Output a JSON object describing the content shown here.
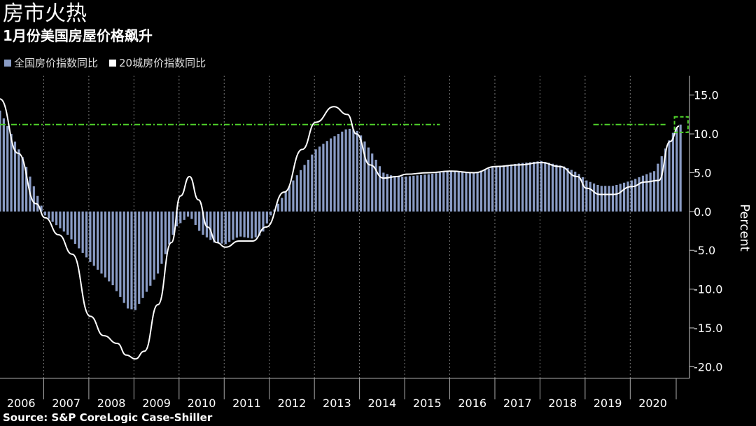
{
  "title": "房市火热",
  "subtitle": "1月份美国房屋价格飙升",
  "source": "Source: S&P CoreLogic Case-Shiller",
  "colors": {
    "background": "#000000",
    "bars": "#8a9cc5",
    "line": "#ffffff",
    "threshold": "#4fd12a",
    "grid": "#7a7a7a"
  },
  "chart_data": {
    "type": "bar",
    "ylabel": "Percent",
    "ylim": [
      -21.5,
      17.5
    ],
    "yticks": [
      15.0,
      10.0,
      5.0,
      0.0,
      -5.0,
      -10.0,
      -15.0,
      -20.0
    ],
    "ytick_labels": [
      "15.0",
      "10.0",
      "5.0",
      "0.0",
      "-5.0",
      "-10.0",
      "-15.0",
      "-20.0"
    ],
    "xlim": [
      2006.0,
      2021.05
    ],
    "x_labels": [
      "2006",
      "2007",
      "2008",
      "2009",
      "2010",
      "2011",
      "2012",
      "2013",
      "2014",
      "2015",
      "2016",
      "2017",
      "2018",
      "2019",
      "2020"
    ],
    "grid": "vertical dotted at year starts",
    "legend_position": "top-left",
    "series": [
      {
        "name": "全国房价指数同比",
        "kind": "bar",
        "points": [
          [
            2006.0,
            13.0
          ],
          [
            2006.5,
            7.0
          ],
          [
            2007.0,
            -0.5
          ],
          [
            2007.5,
            -3.0
          ],
          [
            2008.0,
            -6.5
          ],
          [
            2008.5,
            -9.5
          ],
          [
            2008.83,
            -12.5
          ],
          [
            2009.0,
            -12.7
          ],
          [
            2009.5,
            -8.0
          ],
          [
            2009.9,
            -2.0
          ],
          [
            2010.2,
            -0.5
          ],
          [
            2010.45,
            -2.8
          ],
          [
            2010.75,
            -4.0
          ],
          [
            2011.0,
            -4.2
          ],
          [
            2011.3,
            -3.2
          ],
          [
            2011.6,
            -3.5
          ],
          [
            2011.8,
            -3.0
          ],
          [
            2012.0,
            -0.5
          ],
          [
            2012.5,
            4.0
          ],
          [
            2013.0,
            8.0
          ],
          [
            2013.3,
            9.3
          ],
          [
            2013.7,
            10.7
          ],
          [
            2013.9,
            10.5
          ],
          [
            2014.0,
            9.8
          ],
          [
            2014.3,
            7.0
          ],
          [
            2014.5,
            5.0
          ],
          [
            2014.75,
            4.5
          ],
          [
            2015.0,
            4.5
          ],
          [
            2015.5,
            4.8
          ],
          [
            2016.0,
            5.2
          ],
          [
            2016.5,
            5.0
          ],
          [
            2017.0,
            5.8
          ],
          [
            2017.5,
            6.2
          ],
          [
            2018.0,
            6.5
          ],
          [
            2018.5,
            5.8
          ],
          [
            2018.8,
            5.0
          ],
          [
            2019.0,
            4.0
          ],
          [
            2019.3,
            3.3
          ],
          [
            2019.6,
            3.3
          ],
          [
            2020.0,
            4.0
          ],
          [
            2020.2,
            4.5
          ],
          [
            2020.5,
            5.2
          ],
          [
            2020.7,
            7.5
          ],
          [
            2020.9,
            10.0
          ],
          [
            2021.05,
            11.2
          ]
        ]
      },
      {
        "name": "20城房价指数同比",
        "kind": "line",
        "points": [
          [
            2006.0,
            14.5
          ],
          [
            2006.4,
            7.5
          ],
          [
            2006.8,
            1.0
          ],
          [
            2007.0,
            -0.8
          ],
          [
            2007.3,
            -3.0
          ],
          [
            2007.6,
            -5.5
          ],
          [
            2008.0,
            -13.5
          ],
          [
            2008.3,
            -16.0
          ],
          [
            2008.6,
            -17.0
          ],
          [
            2008.8,
            -18.5
          ],
          [
            2009.0,
            -19.0
          ],
          [
            2009.2,
            -18.0
          ],
          [
            2009.5,
            -12.0
          ],
          [
            2009.8,
            -4.0
          ],
          [
            2010.0,
            2.0
          ],
          [
            2010.2,
            4.5
          ],
          [
            2010.4,
            1.5
          ],
          [
            2010.6,
            -2.0
          ],
          [
            2010.8,
            -4.0
          ],
          [
            2011.0,
            -4.6
          ],
          [
            2011.3,
            -3.8
          ],
          [
            2011.6,
            -3.8
          ],
          [
            2011.9,
            -2.0
          ],
          [
            2012.3,
            2.5
          ],
          [
            2012.7,
            8.0
          ],
          [
            2013.0,
            11.5
          ],
          [
            2013.4,
            13.5
          ],
          [
            2013.7,
            12.5
          ],
          [
            2013.9,
            10.0
          ],
          [
            2014.2,
            6.0
          ],
          [
            2014.5,
            4.3
          ],
          [
            2014.8,
            4.5
          ],
          [
            2015.0,
            4.8
          ],
          [
            2015.5,
            5.0
          ],
          [
            2016.0,
            5.2
          ],
          [
            2016.5,
            5.0
          ],
          [
            2017.0,
            5.8
          ],
          [
            2017.5,
            6.0
          ],
          [
            2018.0,
            6.3
          ],
          [
            2018.4,
            5.8
          ],
          [
            2018.8,
            4.5
          ],
          [
            2019.0,
            3.0
          ],
          [
            2019.3,
            2.2
          ],
          [
            2019.6,
            2.2
          ],
          [
            2020.0,
            3.2
          ],
          [
            2020.3,
            3.8
          ],
          [
            2020.6,
            4.0
          ],
          [
            2020.85,
            9.0
          ],
          [
            2021.05,
            11.0
          ]
        ]
      }
    ],
    "reference_line": {
      "value": 11.2,
      "x_ranges": [
        [
          2006.0,
          2015.75
        ],
        [
          2019.15,
          2020.75
        ]
      ]
    },
    "highlight_box": {
      "x": [
        2020.95,
        2021.25
      ],
      "y": [
        10.2,
        12.2
      ]
    }
  }
}
